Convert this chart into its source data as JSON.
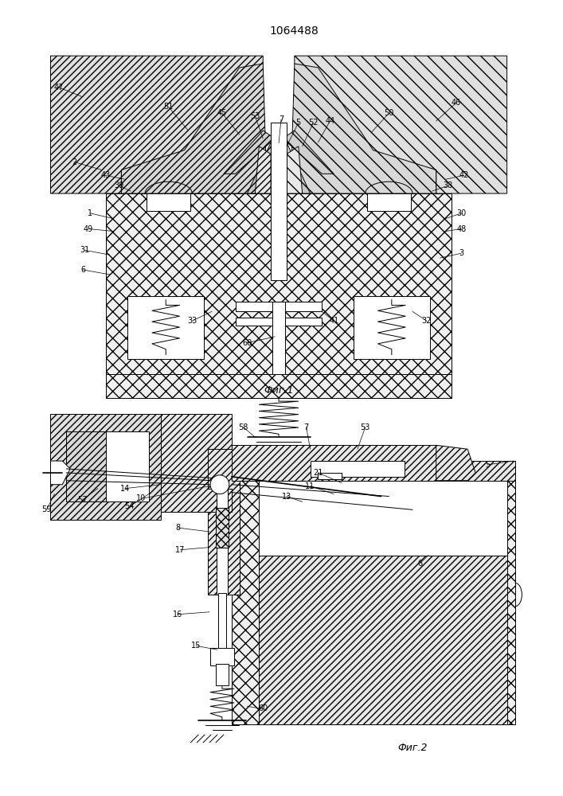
{
  "title": "1064488",
  "fig1_caption": "Фиг.1",
  "fig2_caption": "Фиг.2",
  "bg_color": "#ffffff"
}
